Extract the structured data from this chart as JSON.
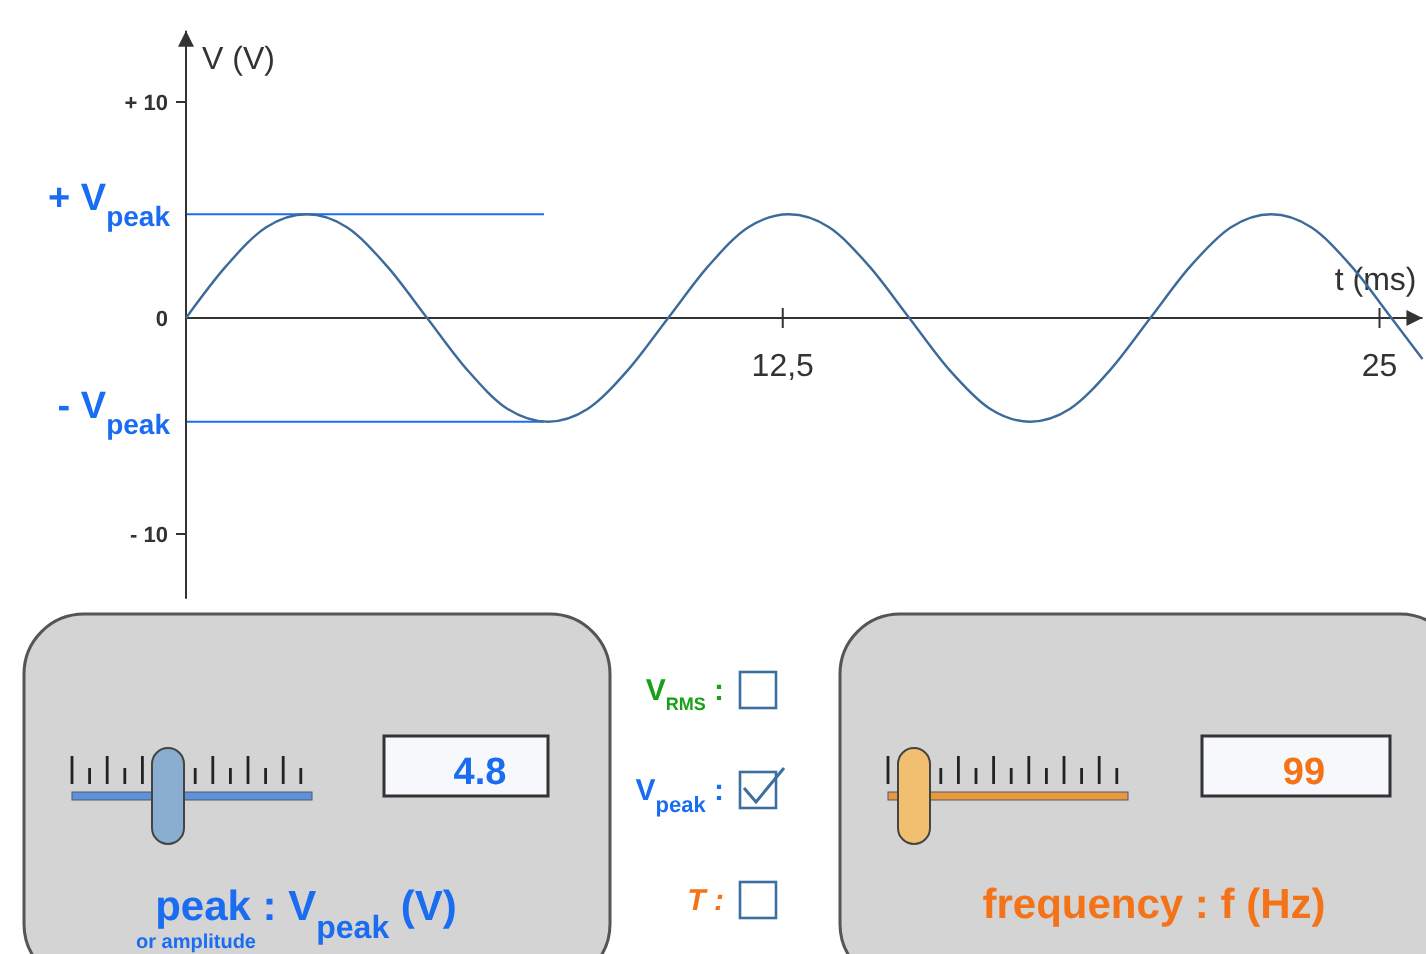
{
  "chart_data": {
    "type": "line",
    "xlabel": "t (ms)",
    "ylabel": "V (V)",
    "x": [
      0,
      0.84,
      1.68,
      2.53,
      3.37,
      4.21,
      5.05,
      5.89,
      6.73,
      7.58,
      8.42,
      9.26,
      10.1,
      10.94,
      11.78,
      12.63,
      13.47,
      14.31,
      15.15,
      15.99,
      16.84,
      17.68,
      18.52,
      19.36,
      20.2,
      21.04,
      21.89,
      22.73,
      23.57,
      24.41,
      25.25,
      25.9
    ],
    "series": [
      {
        "color": "#3d6b99",
        "values": [
          0,
          2.4,
          4.2,
          4.8,
          4.2,
          2.4,
          0,
          -2.4,
          -4.2,
          -4.8,
          -4.2,
          -2.4,
          0,
          2.4,
          4.2,
          4.8,
          4.2,
          2.4,
          0,
          -2.4,
          -4.2,
          -4.8,
          -4.2,
          -2.4,
          0,
          2.4,
          4.2,
          4.8,
          4.2,
          2.4,
          0,
          -1.9
        ]
      }
    ],
    "xlim": [
      0,
      25.9
    ],
    "ylim": [
      -13,
      13.3
    ],
    "xticks": [
      {
        "value": 12.5,
        "label": "12,5"
      },
      25
    ],
    "yticks": [
      {
        "value": 10,
        "label": "+ 10"
      },
      0,
      {
        "value": -10,
        "label": "- 10"
      }
    ],
    "ref_lines": [
      {
        "axis": "y",
        "value": 4.8,
        "label": "+ V$_{peak}$",
        "color": "#1a6cf0"
      },
      {
        "axis": "y",
        "value": -4.8,
        "label": "- V$_{peak}$",
        "color": "#1a6cf0"
      }
    ],
    "annotations": [
      "4.8",
      "peak : V$_{peak}$ (V)",
      "or amplitude",
      "V$_{RMS}$ :",
      "V$_{peak}$ :",
      "T :",
      "99",
      "frequency : f (Hz)"
    ]
  }
}
